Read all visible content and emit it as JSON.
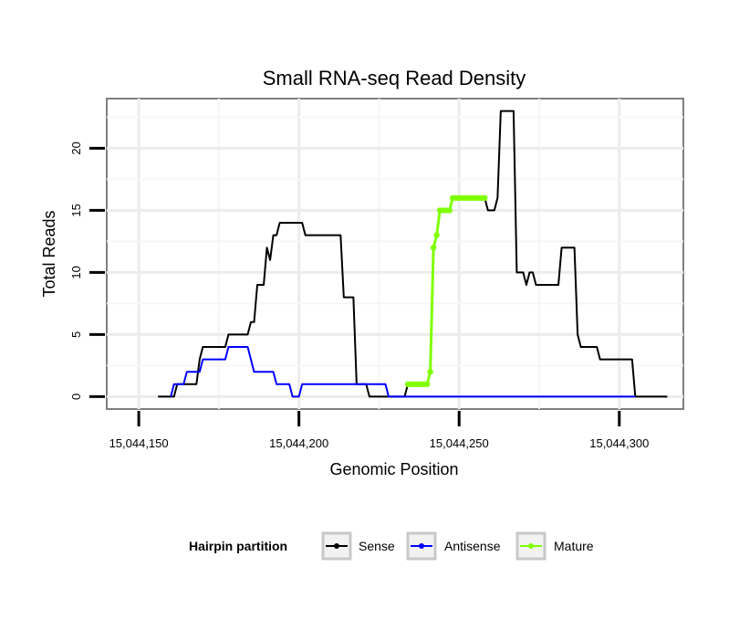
{
  "chart_data": {
    "type": "line",
    "title": "Small RNA-seq Read Density",
    "xlabel": "Genomic Position",
    "ylabel": "Total Reads",
    "xlim": [
      15044140,
      15044320
    ],
    "ylim": [
      -1,
      24
    ],
    "x_ticks": [
      15044150,
      15044200,
      15044250,
      15044300
    ],
    "x_tick_labels": [
      "15,044,150",
      "15,044,200",
      "15,044,250",
      "15,044,300"
    ],
    "y_ticks": [
      0,
      5,
      10,
      15,
      20
    ],
    "y_tick_labels": [
      "0",
      "5",
      "10",
      "15",
      "20"
    ],
    "grid": true,
    "legend": {
      "title": "Hairpin partition",
      "position": "bottom",
      "entries": [
        "Sense",
        "Antisense",
        "Mature"
      ]
    },
    "series": [
      {
        "name": "Sense",
        "color": "#000000",
        "style": "line",
        "points": [
          [
            15044156,
            0
          ],
          [
            15044161,
            0
          ],
          [
            15044162,
            1
          ],
          [
            15044168,
            1
          ],
          [
            15044169,
            3
          ],
          [
            15044170,
            4
          ],
          [
            15044177,
            4
          ],
          [
            15044178,
            5
          ],
          [
            15044184,
            5
          ],
          [
            15044185,
            6
          ],
          [
            15044186,
            6
          ],
          [
            15044187,
            9
          ],
          [
            15044189,
            9
          ],
          [
            15044190,
            12
          ],
          [
            15044191,
            11
          ],
          [
            15044192,
            13
          ],
          [
            15044193,
            13
          ],
          [
            15044194,
            14
          ],
          [
            15044196,
            14
          ],
          [
            15044197,
            14
          ],
          [
            15044201,
            14
          ],
          [
            15044202,
            13
          ],
          [
            15044208,
            13
          ],
          [
            15044213,
            13
          ],
          [
            15044214,
            8
          ],
          [
            15044217,
            8
          ],
          [
            15044218,
            1
          ],
          [
            15044221,
            1
          ],
          [
            15044222,
            0
          ],
          [
            15044233,
            0
          ],
          [
            15044234,
            1
          ],
          [
            15044235,
            1
          ],
          [
            15044236,
            1
          ],
          [
            15044237,
            1
          ],
          [
            15044238,
            1
          ],
          [
            15044239,
            1
          ],
          [
            15044240,
            1
          ],
          [
            15044241,
            2
          ],
          [
            15044242,
            12
          ],
          [
            15044243,
            13
          ],
          [
            15044244,
            15
          ],
          [
            15044245,
            15
          ],
          [
            15044246,
            15
          ],
          [
            15044247,
            15
          ],
          [
            15044248,
            16
          ],
          [
            15044249,
            16
          ],
          [
            15044250,
            16
          ],
          [
            15044251,
            16
          ],
          [
            15044252,
            16
          ],
          [
            15044253,
            16
          ],
          [
            15044254,
            16
          ],
          [
            15044255,
            16
          ],
          [
            15044256,
            16
          ],
          [
            15044257,
            16
          ],
          [
            15044258,
            16
          ],
          [
            15044259,
            15
          ],
          [
            15044261,
            15
          ],
          [
            15044262,
            16
          ],
          [
            15044263,
            23
          ],
          [
            15044267,
            23
          ],
          [
            15044268,
            10
          ],
          [
            15044270,
            10
          ],
          [
            15044271,
            9
          ],
          [
            15044272,
            10
          ],
          [
            15044273,
            10
          ],
          [
            15044274,
            9
          ],
          [
            15044281,
            9
          ],
          [
            15044282,
            12
          ],
          [
            15044286,
            12
          ],
          [
            15044287,
            5
          ],
          [
            15044288,
            4
          ],
          [
            15044293,
            4
          ],
          [
            15044294,
            3
          ],
          [
            15044301,
            3
          ],
          [
            15044304,
            3
          ],
          [
            15044305,
            0
          ],
          [
            15044310,
            0
          ],
          [
            15044315,
            0
          ]
        ]
      },
      {
        "name": "Antisense",
        "color": "#0000ff",
        "style": "line",
        "points": [
          [
            15044160,
            0
          ],
          [
            15044161,
            1
          ],
          [
            15044164,
            1
          ],
          [
            15044165,
            2
          ],
          [
            15044169,
            2
          ],
          [
            15044170,
            3
          ],
          [
            15044177,
            3
          ],
          [
            15044178,
            4
          ],
          [
            15044184,
            4
          ],
          [
            15044185,
            3
          ],
          [
            15044186,
            2
          ],
          [
            15044192,
            2
          ],
          [
            15044193,
            1
          ],
          [
            15044197,
            1
          ],
          [
            15044198,
            0
          ],
          [
            15044200,
            0
          ],
          [
            15044201,
            1
          ],
          [
            15044208,
            1
          ],
          [
            15044223,
            1
          ],
          [
            15044227,
            1
          ],
          [
            15044228,
            0
          ],
          [
            15044240,
            0
          ],
          [
            15044260,
            0
          ],
          [
            15044280,
            0
          ],
          [
            15044301,
            0
          ],
          [
            15044305,
            0
          ]
        ]
      },
      {
        "name": "Mature",
        "color": "#7fff00",
        "style": "line+points",
        "points": [
          [
            15044234,
            1
          ],
          [
            15044235,
            1
          ],
          [
            15044236,
            1
          ],
          [
            15044237,
            1
          ],
          [
            15044238,
            1
          ],
          [
            15044239,
            1
          ],
          [
            15044240,
            1
          ],
          [
            15044241,
            2
          ],
          [
            15044242,
            12
          ],
          [
            15044243,
            13
          ],
          [
            15044244,
            15
          ],
          [
            15044245,
            15
          ],
          [
            15044246,
            15
          ],
          [
            15044247,
            15
          ],
          [
            15044248,
            16
          ],
          [
            15044249,
            16
          ],
          [
            15044250,
            16
          ],
          [
            15044251,
            16
          ],
          [
            15044252,
            16
          ],
          [
            15044253,
            16
          ],
          [
            15044254,
            16
          ],
          [
            15044255,
            16
          ],
          [
            15044256,
            16
          ],
          [
            15044257,
            16
          ],
          [
            15044258,
            16
          ]
        ]
      }
    ]
  }
}
